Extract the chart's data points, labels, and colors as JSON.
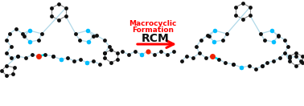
{
  "title_line1": "Macrocyclic",
  "title_line2": "Formation",
  "arrow_label": "RCM",
  "title_color": "#FF0000",
  "arrow_color": "#FF0000",
  "bg_color": "#FFFFFF",
  "bond_color": "#B0D8E8",
  "bond_color2": "#888888",
  "node_color": "#111111",
  "n_color": "#00BFFF",
  "o_color": "#EE2200",
  "cyan_color": "#00E5FF",
  "figsize": [
    3.78,
    1.32
  ],
  "dpi": 100
}
